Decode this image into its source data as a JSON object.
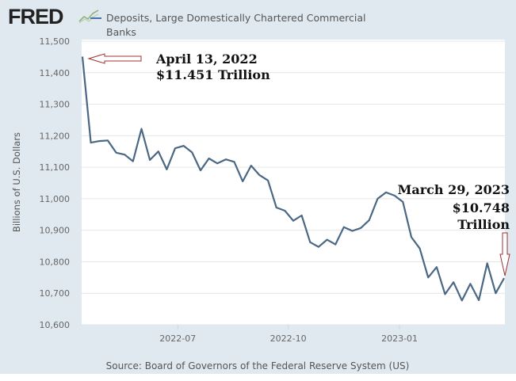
{
  "header": {
    "logo_text": "FRED",
    "logo_icon": "line-graph-icon",
    "legend_label": "Deposits, Large Domestically Chartered Commercial Banks"
  },
  "footer": {
    "source": "Source: Board of Governors of the Federal Reserve System (US)"
  },
  "colors": {
    "line": "#4a6784",
    "background": "#e1e9f0",
    "plot_bg": "#ffffff",
    "gridline": "#e6e6e6",
    "arrow": "#a03030"
  },
  "annotations": [
    {
      "line1": "April 13, 2022",
      "line2": "$11.451 Trillion",
      "arrow": "left",
      "date": "2022-04-13",
      "value": 11451
    },
    {
      "line1": "March 29, 2023",
      "line2": "$10.748",
      "line3": "Trillion",
      "arrow": "down",
      "date": "2023-03-29",
      "value": 10748
    }
  ],
  "chart_data": {
    "type": "line",
    "title": "Deposits, Large Domestically Chartered Commercial Banks",
    "xlabel": "",
    "ylabel": "Billions of U.S. Dollars",
    "ylim": [
      10600,
      11500
    ],
    "yticks": [
      10600,
      10700,
      10800,
      10900,
      11000,
      11100,
      11200,
      11300,
      11400,
      11500
    ],
    "ytick_labels": [
      "10,600",
      "10,700",
      "10,800",
      "10,900",
      "11,000",
      "11,100",
      "11,200",
      "11,300",
      "11,400",
      "11,500"
    ],
    "xticks": [
      {
        "label": "2022-07",
        "week_index": 11.3
      },
      {
        "label": "2022-10",
        "week_index": 24.4
      },
      {
        "label": "2023-01",
        "week_index": 37.6
      }
    ],
    "grid": true,
    "legend": "top",
    "x_start": "2022-04-13",
    "x_end": "2023-03-29",
    "frequency": "weekly",
    "series": [
      {
        "name": "Deposits, Large Domestically Chartered Commercial Banks",
        "values": [
          11451,
          11178,
          11183,
          11185,
          11146,
          11140,
          11119,
          11222,
          11123,
          11150,
          11093,
          11160,
          11168,
          11147,
          11090,
          11128,
          11112,
          11125,
          11117,
          11055,
          11105,
          11075,
          11058,
          10972,
          10962,
          10930,
          10947,
          10862,
          10847,
          10870,
          10855,
          10910,
          10898,
          10907,
          10932,
          11000,
          11020,
          11010,
          10990,
          10878,
          10842,
          10750,
          10783,
          10697,
          10735,
          10677,
          10730,
          10678,
          10795,
          10700,
          10748
        ]
      }
    ]
  }
}
